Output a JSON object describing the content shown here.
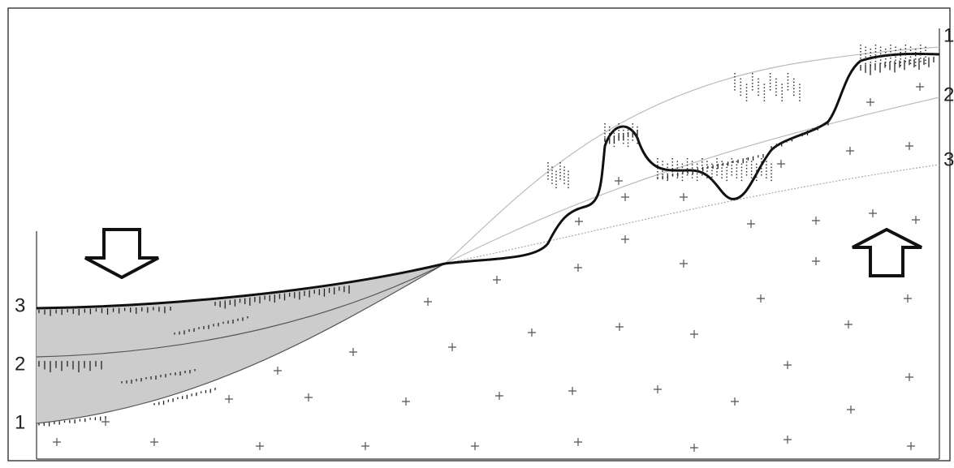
{
  "left_labels": [
    "3",
    "2",
    "1"
  ],
  "right_labels": [
    "1",
    "2",
    "3"
  ]
}
